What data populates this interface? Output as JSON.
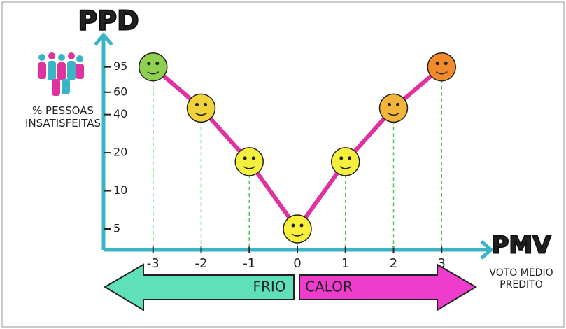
{
  "chart_data": {
    "type": "line",
    "title": "PPD",
    "y_label": "% PESSOAS INSATISFEITAS",
    "x_title": "PMV",
    "x_label": "VOTO MÉDIO PREDITO",
    "cold_label": "FRIO",
    "warm_label": "CALOR",
    "x": [
      -3,
      -2,
      -1,
      0,
      1,
      2,
      3
    ],
    "series": [
      {
        "color": "#e0329e",
        "values": [
          95,
          45,
          17,
          5,
          17,
          45,
          95
        ]
      }
    ],
    "marker_colors": [
      "#8fd14f",
      "#f2d23a",
      "#f4ee3c",
      "#f8f03a",
      "#f4ee3c",
      "#f2b53a",
      "#f08a2a"
    ],
    "xlim": [
      -4,
      4
    ],
    "xticks": [
      -3,
      -2,
      -1,
      0,
      1,
      2,
      3
    ],
    "ylim": [
      3.5,
      170
    ],
    "yticks": [
      5,
      10,
      20,
      40,
      60,
      95
    ],
    "log_y": true,
    "drop_lines": true
  }
}
